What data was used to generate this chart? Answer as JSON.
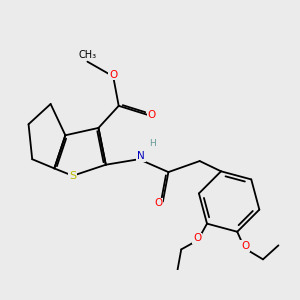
{
  "background_color": "#ebebeb",
  "atom_colors": {
    "O": "#ff0000",
    "N": "#0000bb",
    "S": "#bbbb00",
    "H": "#669999"
  },
  "font_size": 7.5,
  "line_width": 1.3
}
